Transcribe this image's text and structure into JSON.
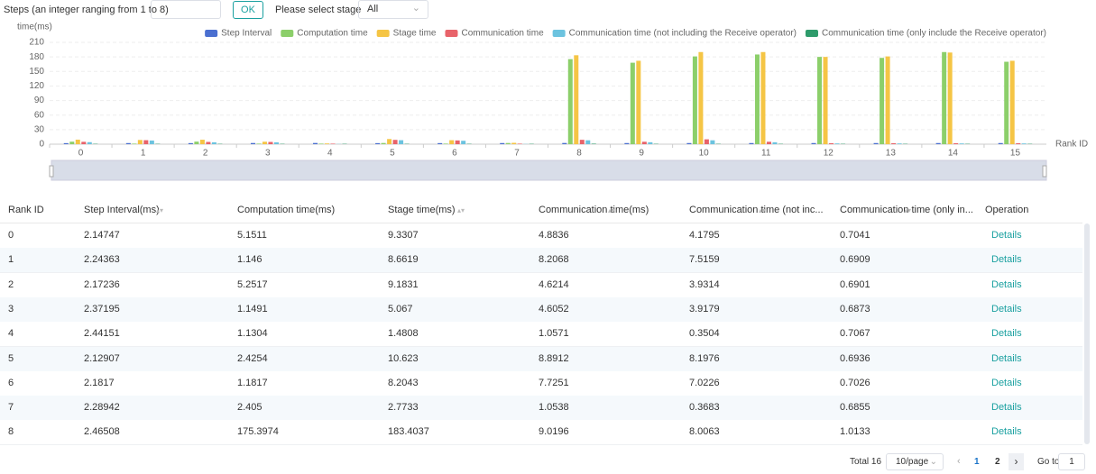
{
  "toolbar": {
    "steps_label": "Steps (an integer ranging from 1 to 8)",
    "ok_button": "OK",
    "stage_label": "Please select stage",
    "stage_value": "All"
  },
  "chart_data": {
    "type": "bar",
    "y_axis_label": "time(ms)",
    "x_axis_label": "Rank ID",
    "categories": [
      "0",
      "1",
      "2",
      "3",
      "4",
      "5",
      "6",
      "7",
      "8",
      "9",
      "10",
      "11",
      "12",
      "13",
      "14",
      "15"
    ],
    "ylim": [
      0,
      210
    ],
    "yticks": [
      0,
      30,
      60,
      90,
      120,
      150,
      180,
      210
    ],
    "grid": true,
    "series": [
      {
        "name": "Step Interval",
        "color": "#4a6fd0",
        "values": [
          2.14747,
          2.24363,
          2.17236,
          2.37195,
          2.44151,
          2.12907,
          2.1817,
          2.28942,
          2.46508,
          2.3,
          2.3,
          2.3,
          2.3,
          2.3,
          2.3,
          2.3
        ]
      },
      {
        "name": "Computation time",
        "color": "#8ccf6a",
        "values": [
          5.1511,
          1.146,
          5.2517,
          1.1491,
          1.1304,
          2.4254,
          1.1817,
          2.405,
          175.3974,
          168,
          181,
          185,
          180,
          178,
          190,
          170
        ]
      },
      {
        "name": "Stage time",
        "color": "#f5c545",
        "values": [
          9.3307,
          8.6619,
          9.1831,
          5.067,
          1.4808,
          10.623,
          8.2043,
          2.7733,
          183.4037,
          172,
          190,
          190,
          180,
          181,
          189,
          172
        ]
      },
      {
        "name": "Communication time",
        "color": "#e8636a",
        "values": [
          4.8836,
          8.2068,
          4.6214,
          4.6052,
          1.0571,
          8.8912,
          7.7251,
          1.0538,
          9.0196,
          5,
          10,
          5,
          2,
          2,
          2,
          2
        ]
      },
      {
        "name": "Communication time (not including the Receive operator)",
        "color": "#6cc3df",
        "values": [
          4.1795,
          7.5159,
          3.9314,
          3.9179,
          0.3504,
          8.1976,
          7.0226,
          0.3683,
          8.0063,
          4,
          8,
          4,
          1.5,
          1.5,
          1.5,
          1.5
        ]
      },
      {
        "name": "Communication time (only include the Receive operator)",
        "color": "#2e9b6b",
        "values": [
          0.7041,
          0.6909,
          0.6901,
          0.6873,
          0.7067,
          0.6936,
          0.7026,
          0.6855,
          1.0133,
          0.7,
          0.7,
          0.7,
          0.7,
          0.7,
          0.7,
          0.7
        ]
      }
    ]
  },
  "table": {
    "headers": [
      "Rank ID",
      "Step Interval(ms)",
      "Computation time(ms)",
      "Stage time(ms)",
      "Communication time(ms)",
      "Communication time (not inc...",
      "Communication time (only in...",
      "Operation"
    ],
    "rows": [
      [
        0,
        2.14747,
        5.1511,
        9.3307,
        4.8836,
        4.1795,
        0.7041,
        "Details"
      ],
      [
        1,
        2.24363,
        1.146,
        8.6619,
        8.2068,
        7.5159,
        0.6909,
        "Details"
      ],
      [
        2,
        2.17236,
        5.2517,
        9.1831,
        4.6214,
        3.9314,
        0.6901,
        "Details"
      ],
      [
        3,
        2.37195,
        1.1491,
        5.067,
        4.6052,
        3.9179,
        0.6873,
        "Details"
      ],
      [
        4,
        2.44151,
        1.1304,
        1.4808,
        1.0571,
        0.3504,
        0.7067,
        "Details"
      ],
      [
        5,
        2.12907,
        2.4254,
        10.623,
        8.8912,
        8.1976,
        0.6936,
        "Details"
      ],
      [
        6,
        2.1817,
        1.1817,
        8.2043,
        7.7251,
        7.0226,
        0.7026,
        "Details"
      ],
      [
        7,
        2.28942,
        2.405,
        2.7733,
        1.0538,
        0.3683,
        0.6855,
        "Details"
      ],
      [
        8,
        2.46508,
        175.3974,
        183.4037,
        9.0196,
        8.0063,
        1.0133,
        "Details"
      ]
    ]
  },
  "pagination": {
    "total": "Total 16",
    "page_size": "10/page",
    "pages": [
      "1",
      "2"
    ],
    "goto_label": "Go to",
    "goto_value": "1"
  }
}
